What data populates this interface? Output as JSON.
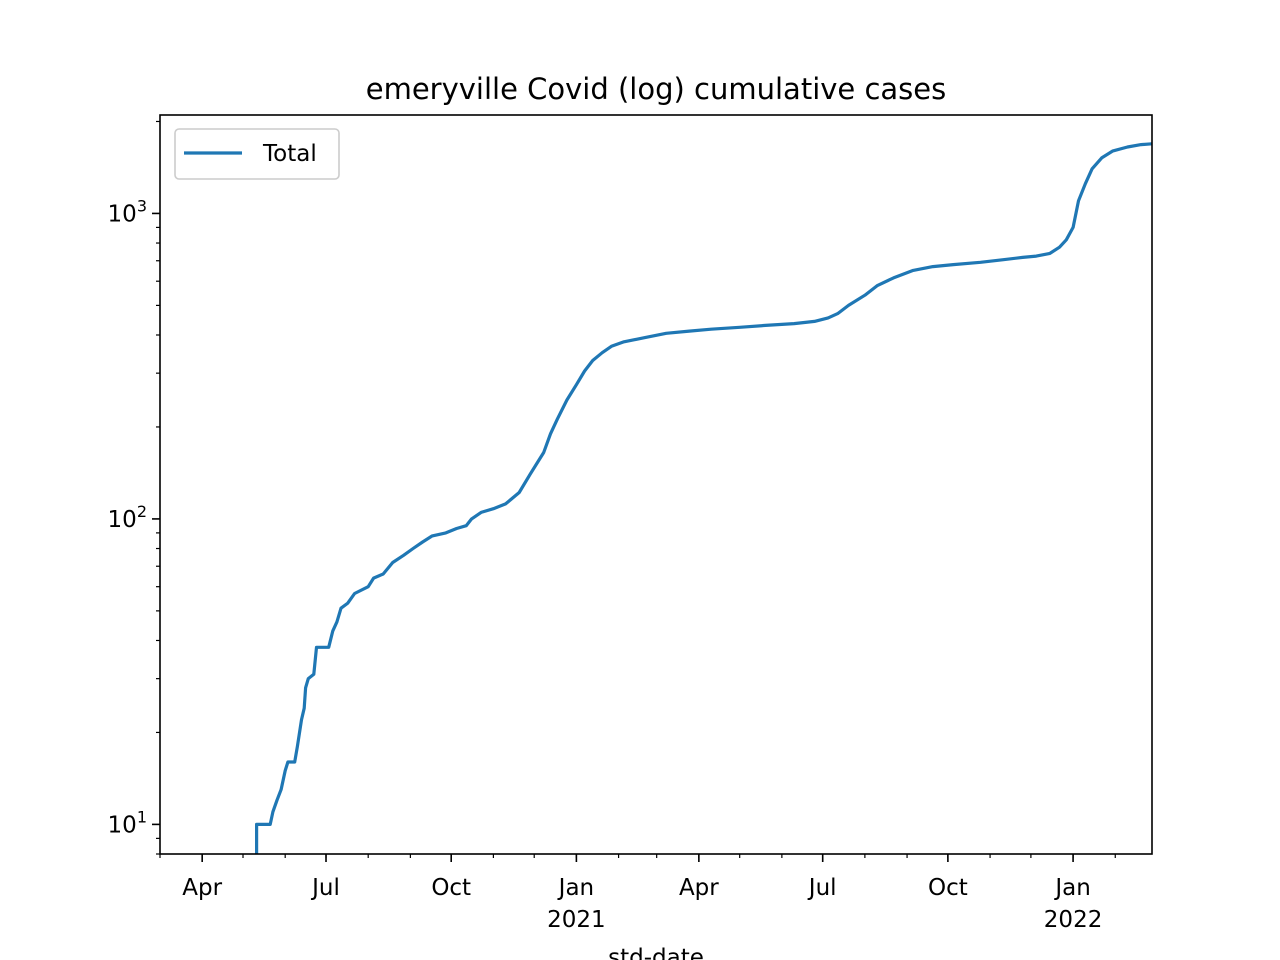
{
  "chart_data": {
    "type": "line",
    "title": "emeryville Covid (log) cumulative cases",
    "xlabel": "std-date",
    "ylabel": "",
    "yscale": "log",
    "ylim": [
      8,
      2100
    ],
    "xlim": [
      "2020-03-01",
      "2022-02-28"
    ],
    "grid": false,
    "legend": {
      "placement": "top-left",
      "entries": [
        "Total"
      ]
    },
    "colors": {
      "line": "#1f77b4",
      "axes": "#000000",
      "background": "#ffffff"
    },
    "x_ticks": [
      {
        "date": "2020-04-01",
        "label": "Apr",
        "sublabel": ""
      },
      {
        "date": "2020-07-01",
        "label": "Jul",
        "sublabel": ""
      },
      {
        "date": "2020-10-01",
        "label": "Oct",
        "sublabel": ""
      },
      {
        "date": "2021-01-01",
        "label": "Jan",
        "sublabel": "2021"
      },
      {
        "date": "2021-04-01",
        "label": "Apr",
        "sublabel": ""
      },
      {
        "date": "2021-07-01",
        "label": "Jul",
        "sublabel": ""
      },
      {
        "date": "2021-10-01",
        "label": "Oct",
        "sublabel": ""
      },
      {
        "date": "2022-01-01",
        "label": "Jan",
        "sublabel": "2022"
      }
    ],
    "y_ticks": [
      {
        "value": 10,
        "base": "10",
        "exponent": "1"
      },
      {
        "value": 100,
        "base": "10",
        "exponent": "2"
      },
      {
        "value": 1000,
        "base": "10",
        "exponent": "3"
      }
    ],
    "series": [
      {
        "name": "Total",
        "color": "#1f77b4",
        "points": [
          [
            "2020-05-11",
            6
          ],
          [
            "2020-05-11",
            10
          ],
          [
            "2020-05-21",
            10
          ],
          [
            "2020-05-23",
            11
          ],
          [
            "2020-05-26",
            12
          ],
          [
            "2020-05-29",
            13
          ],
          [
            "2020-06-01",
            15
          ],
          [
            "2020-06-03",
            16
          ],
          [
            "2020-06-08",
            16
          ],
          [
            "2020-06-10",
            18
          ],
          [
            "2020-06-13",
            22
          ],
          [
            "2020-06-15",
            24
          ],
          [
            "2020-06-16",
            28
          ],
          [
            "2020-06-18",
            30
          ],
          [
            "2020-06-22",
            31
          ],
          [
            "2020-06-24",
            38
          ],
          [
            "2020-07-03",
            38
          ],
          [
            "2020-07-06",
            43
          ],
          [
            "2020-07-09",
            46
          ],
          [
            "2020-07-12",
            51
          ],
          [
            "2020-07-17",
            53
          ],
          [
            "2020-07-22",
            57
          ],
          [
            "2020-08-01",
            60
          ],
          [
            "2020-08-05",
            64
          ],
          [
            "2020-08-12",
            66
          ],
          [
            "2020-08-19",
            72
          ],
          [
            "2020-08-27",
            76
          ],
          [
            "2020-09-03",
            80
          ],
          [
            "2020-09-10",
            84
          ],
          [
            "2020-09-17",
            88
          ],
          [
            "2020-09-27",
            90
          ],
          [
            "2020-10-05",
            93
          ],
          [
            "2020-10-12",
            95
          ],
          [
            "2020-10-16",
            100
          ],
          [
            "2020-10-23",
            105
          ],
          [
            "2020-11-01",
            108
          ],
          [
            "2020-11-10",
            112
          ],
          [
            "2020-11-20",
            122
          ],
          [
            "2020-11-28",
            140
          ],
          [
            "2020-12-03",
            152
          ],
          [
            "2020-12-08",
            165
          ],
          [
            "2020-12-13",
            190
          ],
          [
            "2020-12-18",
            212
          ],
          [
            "2020-12-25",
            245
          ],
          [
            "2021-01-01",
            275
          ],
          [
            "2021-01-07",
            305
          ],
          [
            "2021-01-13",
            330
          ],
          [
            "2021-01-20",
            350
          ],
          [
            "2021-01-27",
            368
          ],
          [
            "2021-02-05",
            380
          ],
          [
            "2021-02-20",
            392
          ],
          [
            "2021-03-08",
            405
          ],
          [
            "2021-03-25",
            412
          ],
          [
            "2021-04-10",
            418
          ],
          [
            "2021-05-01",
            424
          ],
          [
            "2021-05-20",
            430
          ],
          [
            "2021-06-10",
            436
          ],
          [
            "2021-06-25",
            443
          ],
          [
            "2021-07-05",
            455
          ],
          [
            "2021-07-12",
            470
          ],
          [
            "2021-07-20",
            500
          ],
          [
            "2021-08-01",
            540
          ],
          [
            "2021-08-10",
            580
          ],
          [
            "2021-08-22",
            615
          ],
          [
            "2021-09-05",
            650
          ],
          [
            "2021-09-20",
            670
          ],
          [
            "2021-10-05",
            680
          ],
          [
            "2021-10-25",
            692
          ],
          [
            "2021-11-10",
            705
          ],
          [
            "2021-11-25",
            718
          ],
          [
            "2021-12-05",
            725
          ],
          [
            "2021-12-15",
            740
          ],
          [
            "2021-12-22",
            775
          ],
          [
            "2021-12-27",
            820
          ],
          [
            "2022-01-01",
            900
          ],
          [
            "2022-01-05",
            1100
          ],
          [
            "2022-01-10",
            1250
          ],
          [
            "2022-01-15",
            1400
          ],
          [
            "2022-01-22",
            1520
          ],
          [
            "2022-01-30",
            1600
          ],
          [
            "2022-02-10",
            1650
          ],
          [
            "2022-02-20",
            1680
          ],
          [
            "2022-02-28",
            1690
          ]
        ]
      }
    ]
  }
}
